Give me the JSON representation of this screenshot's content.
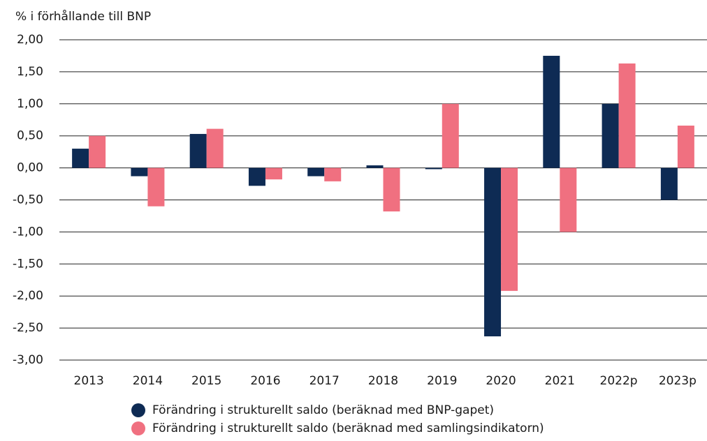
{
  "chart_data": {
    "type": "bar",
    "y_label": "% i förhållande till BNP",
    "categories": [
      "2013",
      "2014",
      "2015",
      "2016",
      "2017",
      "2018",
      "2019",
      "2020",
      "2021",
      "2022p",
      "2023p"
    ],
    "series": [
      {
        "name": "Förändring i strukturellt saldo (beräknad med BNP-gapet)",
        "color": "#0e2b54",
        "values": [
          0.3,
          -0.13,
          0.53,
          -0.28,
          -0.13,
          0.04,
          -0.02,
          -2.63,
          1.75,
          1.0,
          -0.5
        ]
      },
      {
        "name": "Förändring i strukturellt saldo (beräknad med samlingsindikatorn)",
        "color": "#f07080",
        "values": [
          0.5,
          -0.6,
          0.61,
          -0.18,
          -0.21,
          -0.68,
          1.0,
          -1.92,
          -1.0,
          1.63,
          0.66
        ]
      }
    ],
    "ylim": [
      -3,
      2
    ],
    "yticks": [
      {
        "value": -3,
        "label": "-3,00"
      },
      {
        "value": -2.5,
        "label": "-2,50"
      },
      {
        "value": -2,
        "label": "-2,00"
      },
      {
        "value": -1.5,
        "label": "-1,50"
      },
      {
        "value": -1,
        "label": "-1,00"
      },
      {
        "value": -0.5,
        "label": "-0,50"
      },
      {
        "value": 0,
        "label": "0,00"
      },
      {
        "value": 0.5,
        "label": "0,50"
      },
      {
        "value": 1,
        "label": "1,00"
      },
      {
        "value": 1.5,
        "label": "1,50"
      },
      {
        "value": 2,
        "label": "2,00"
      }
    ],
    "grid": true
  }
}
